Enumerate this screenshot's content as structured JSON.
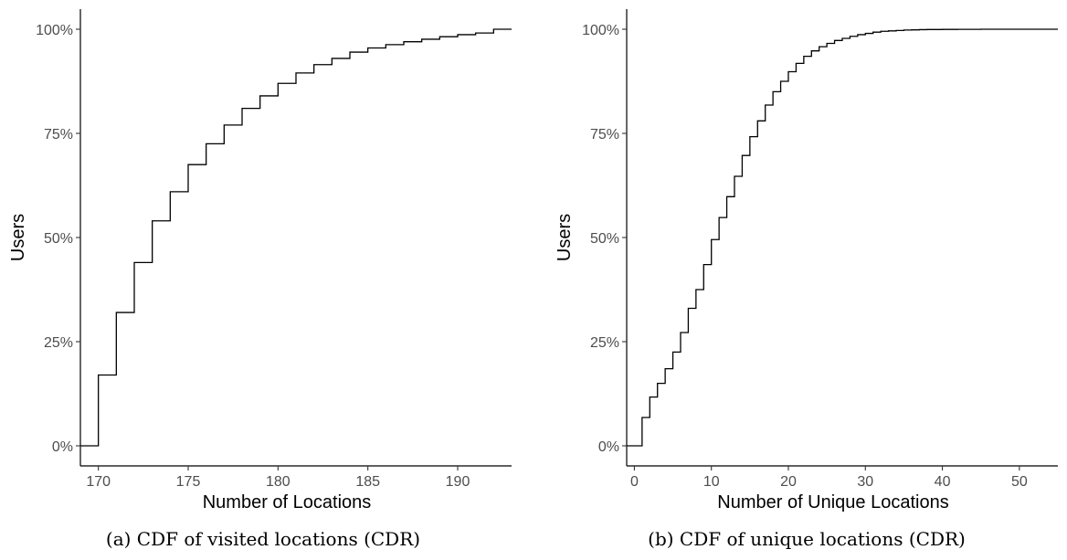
{
  "chart_data": [
    {
      "type": "line",
      "step": true,
      "caption": "(a) CDF of visited locations (CDR)",
      "xlabel": "Number of Locations",
      "ylabel": "Users",
      "xlim": [
        169,
        193
      ],
      "ylim": [
        0,
        1
      ],
      "xticks": [
        170,
        175,
        180,
        185,
        190
      ],
      "yticks": [
        0,
        0.25,
        0.5,
        0.75,
        1.0
      ],
      "ytick_labels": [
        "0%",
        "25%",
        "50%",
        "75%",
        "100%"
      ],
      "grid": false,
      "series": [
        {
          "x": [
            169,
            170,
            171,
            172,
            173,
            174,
            175,
            176,
            177,
            178,
            179,
            180,
            181,
            182,
            183,
            184,
            185,
            186,
            187,
            188,
            189,
            190,
            191,
            192,
            193
          ],
          "y": [
            0,
            0.17,
            0.32,
            0.44,
            0.54,
            0.61,
            0.675,
            0.725,
            0.77,
            0.81,
            0.84,
            0.87,
            0.895,
            0.915,
            0.93,
            0.945,
            0.955,
            0.963,
            0.97,
            0.976,
            0.982,
            0.987,
            0.991,
            1.0,
            1.0
          ]
        }
      ]
    },
    {
      "type": "line",
      "step": true,
      "caption": "(b) CDF of unique locations (CDR)",
      "xlabel": "Number of Unique Locations",
      "ylabel": "Users",
      "xlim": [
        -1,
        55
      ],
      "ylim": [
        0,
        1
      ],
      "xticks": [
        0,
        10,
        20,
        30,
        40,
        50
      ],
      "yticks": [
        0,
        0.25,
        0.5,
        0.75,
        1.0
      ],
      "ytick_labels": [
        "0%",
        "25%",
        "50%",
        "75%",
        "100%"
      ],
      "grid": false,
      "series": [
        {
          "x": [
            -1,
            1,
            2,
            3,
            4,
            5,
            6,
            7,
            8,
            9,
            10,
            11,
            12,
            13,
            14,
            15,
            16,
            17,
            18,
            19,
            20,
            21,
            22,
            23,
            24,
            25,
            26,
            27,
            28,
            29,
            30,
            31,
            32,
            33,
            34,
            35,
            36,
            37,
            38,
            40,
            42,
            45,
            55
          ],
          "y": [
            0,
            0.068,
            0.117,
            0.15,
            0.185,
            0.225,
            0.272,
            0.33,
            0.375,
            0.435,
            0.495,
            0.548,
            0.598,
            0.647,
            0.697,
            0.742,
            0.78,
            0.818,
            0.85,
            0.875,
            0.898,
            0.918,
            0.935,
            0.948,
            0.958,
            0.966,
            0.973,
            0.978,
            0.983,
            0.987,
            0.99,
            0.993,
            0.995,
            0.996,
            0.997,
            0.998,
            0.9985,
            0.999,
            0.9993,
            0.9996,
            0.9998,
            1.0,
            1.0
          ]
        }
      ]
    }
  ]
}
